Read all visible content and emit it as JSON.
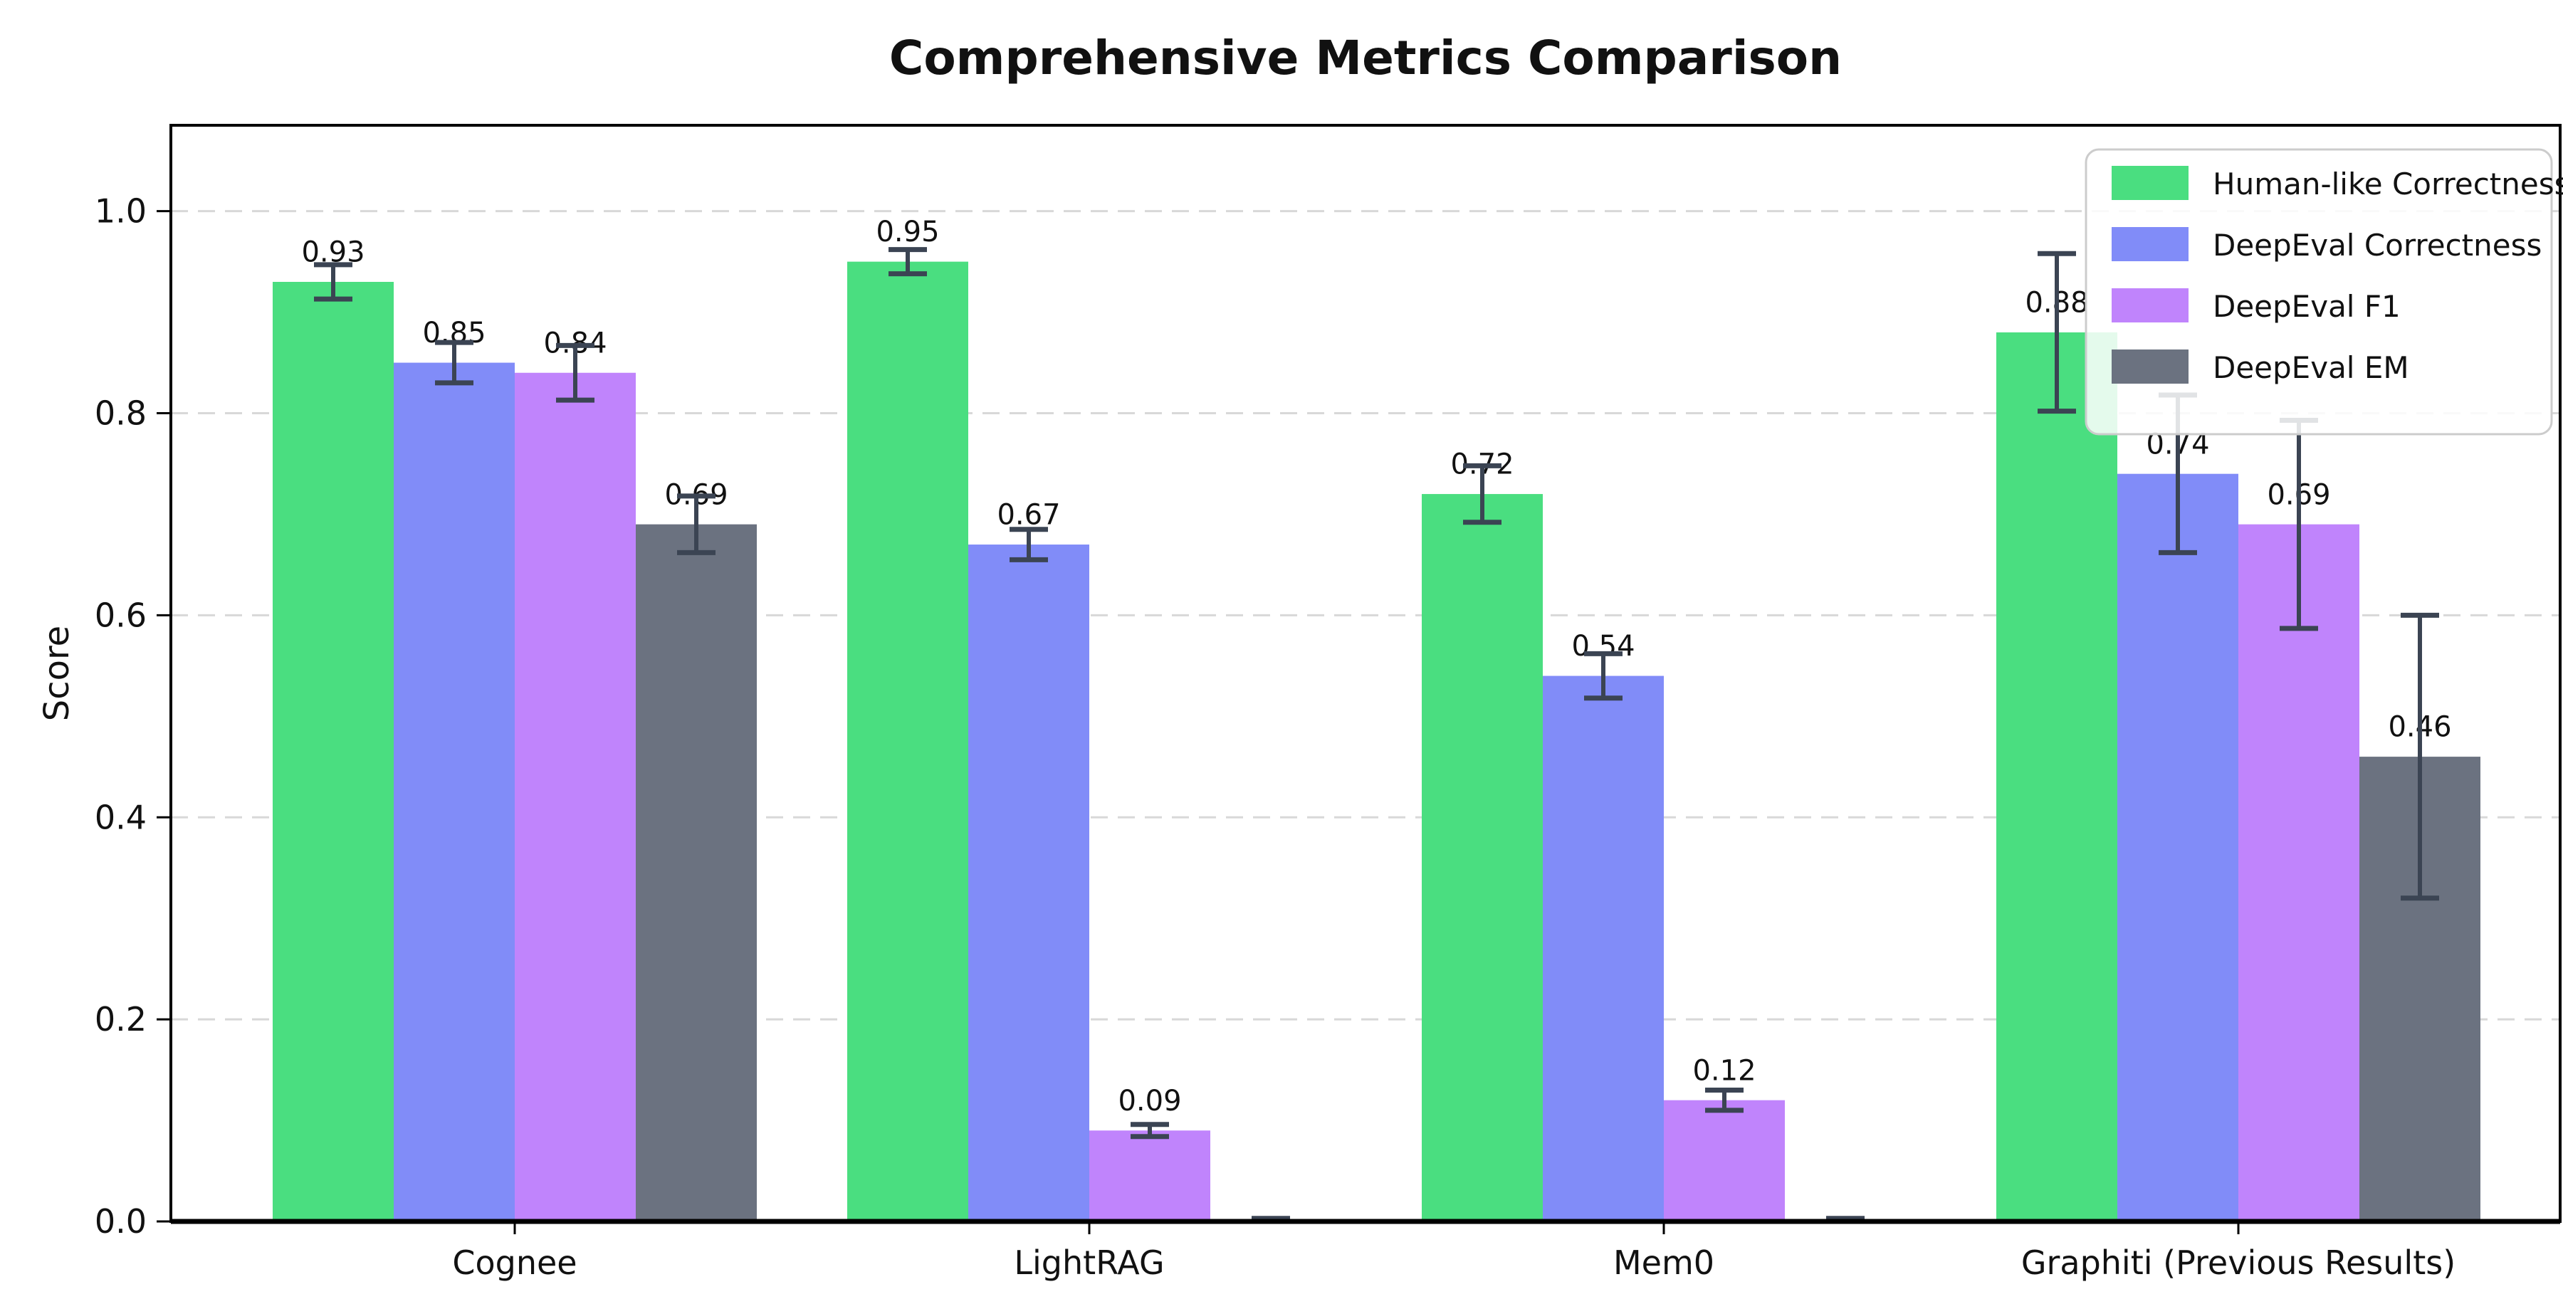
{
  "page": {
    "background": "#ffffff"
  },
  "chart_data": {
    "type": "bar",
    "title": "Comprehensive Metrics Comparison",
    "xlabel": "",
    "ylabel": "Score",
    "categories": [
      "Cognee",
      "LightRAG",
      "Mem0",
      "Graphiti (Previous Results)"
    ],
    "series": [
      {
        "name": "Human-like Correctness",
        "color": "#4ade80",
        "values": [
          0.93,
          0.95,
          0.72,
          0.88
        ],
        "errors": [
          0.017,
          0.012,
          0.028,
          0.078
        ],
        "labels": [
          "0.93",
          "0.95",
          "0.72",
          "0.88"
        ]
      },
      {
        "name": "DeepEval Correctness",
        "color": "#818cf8",
        "values": [
          0.85,
          0.67,
          0.54,
          0.74
        ],
        "errors": [
          0.02,
          0.015,
          0.022,
          0.078
        ],
        "labels": [
          "0.85",
          "0.67",
          "0.54",
          "0.74"
        ]
      },
      {
        "name": "DeepEval F1",
        "color": "#c084fc",
        "values": [
          0.84,
          0.09,
          0.12,
          0.69
        ],
        "errors": [
          0.027,
          0.006,
          0.01,
          0.103
        ],
        "labels": [
          "0.84",
          "0.09",
          "0.12",
          "0.69"
        ]
      },
      {
        "name": "DeepEval EM",
        "color": "#6b7280",
        "values": [
          0.69,
          0.0,
          0.0,
          0.46
        ],
        "errors": [
          0.028,
          0.003,
          0.003,
          0.14
        ],
        "labels": [
          "0.69",
          null,
          null,
          "0.46"
        ]
      }
    ],
    "yticks": [
      "0.0",
      "0.2",
      "0.4",
      "0.6",
      "0.8",
      "1.0"
    ],
    "ylim": [
      0,
      1.085
    ],
    "grid": "horizontal-dashed",
    "legend_position": "upper-right",
    "colors": {
      "error_bar": "#3b4453",
      "grid_line": "#d8d8d8",
      "axis": "#000000",
      "text": "#111111",
      "legend_border": "#cccccc",
      "legend_fill": "#ffffff"
    }
  }
}
